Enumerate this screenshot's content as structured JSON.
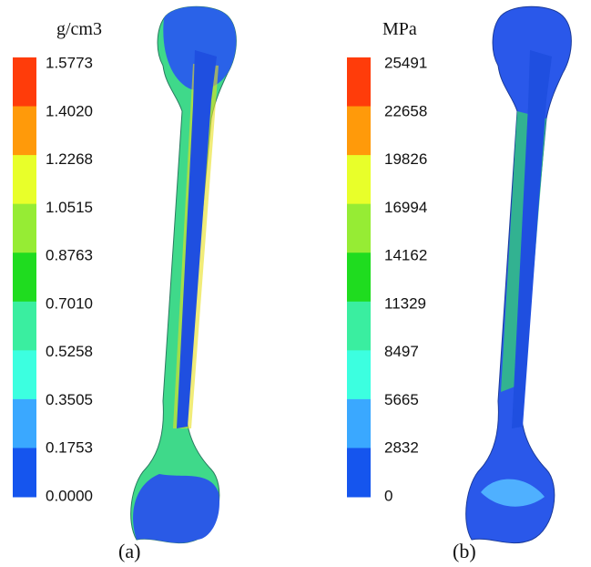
{
  "panels": [
    {
      "unit": "g/cm3",
      "labels": [
        "1.5773",
        "1.4020",
        "1.2268",
        "1.0515",
        "0.8763",
        "0.7010",
        "0.5258",
        "0.3505",
        "0.1753",
        "0.0000"
      ],
      "caption": "(a)"
    },
    {
      "unit": "MPa",
      "labels": [
        "25491",
        "22658",
        "19826",
        "16994",
        "14162",
        "11329",
        "8497",
        "5665",
        "2832",
        "0"
      ],
      "caption": "(b)"
    }
  ]
}
